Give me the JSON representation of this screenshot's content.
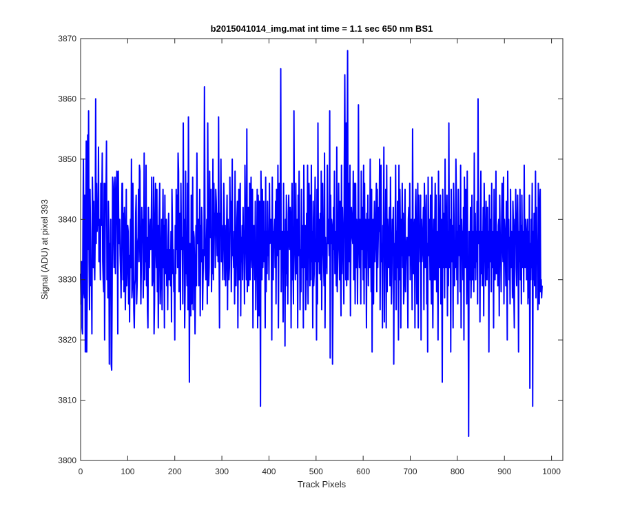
{
  "chart_data": {
    "type": "line",
    "title": "b2015041014_img.mat int time = 1.1 sec  650 nm BS1",
    "xlabel": "Track Pixels",
    "ylabel": "Signal (ADU) at pixel 393",
    "xlim": [
      0,
      1024
    ],
    "ylim": [
      3800,
      3870
    ],
    "xticks": [
      "0",
      "100",
      "200",
      "300",
      "400",
      "500",
      "600",
      "700",
      "800",
      "900",
      "1000"
    ],
    "yticks": [
      "3800",
      "3810",
      "3820",
      "3830",
      "3840",
      "3850",
      "3860",
      "3870"
    ],
    "grid": false,
    "line_color": "#0000ff",
    "x_step": 1,
    "series": [
      {
        "values": [
          3831,
          3826,
          3833,
          3822,
          3821,
          3838,
          3850,
          3828,
          3827,
          3844,
          3818,
          3840,
          3853,
          3818,
          3828,
          3854,
          3835,
          3858,
          3833,
          3825,
          3845,
          3838,
          3829,
          3832,
          3821,
          3847,
          3842,
          3832,
          3843,
          3833,
          3830,
          3838,
          3860,
          3836,
          3846,
          3838,
          3840,
          3839,
          3852,
          3833,
          3840,
          3836,
          3830,
          3846,
          3839,
          3842,
          3851,
          3833,
          3830,
          3828,
          3846,
          3820,
          3836,
          3846,
          3844,
          3853,
          3830,
          3837,
          3827,
          3843,
          3838,
          3816,
          3836,
          3830,
          3840,
          3816,
          3815,
          3828,
          3847,
          3845,
          3838,
          3832,
          3846,
          3847,
          3831,
          3839,
          3845,
          3848,
          3839,
          3821,
          3848,
          3838,
          3836,
          3840,
          3834,
          3831,
          3827,
          3838,
          3846,
          3846,
          3830,
          3841,
          3828,
          3842,
          3839,
          3825,
          3832,
          3845,
          3829,
          3832,
          3839,
          3838,
          3826,
          3834,
          3823,
          3834,
          3840,
          3832,
          3850,
          3827,
          3829,
          3846,
          3838,
          3825,
          3822,
          3829,
          3830,
          3841,
          3844,
          3826,
          3829,
          3836,
          3837,
          3845,
          3833,
          3849,
          3848,
          3835,
          3826,
          3833,
          3842,
          3837,
          3840,
          3827,
          3833,
          3851,
          3830,
          3836,
          3833,
          3849,
          3829,
          3837,
          3825,
          3822,
          3842,
          3836,
          3832,
          3838,
          3840,
          3835,
          3838,
          3847,
          3829,
          3830,
          3832,
          3847,
          3821,
          3826,
          3840,
          3846,
          3836,
          3832,
          3845,
          3828,
          3839,
          3822,
          3834,
          3841,
          3846,
          3826,
          3829,
          3835,
          3840,
          3825,
          3836,
          3845,
          3832,
          3839,
          3822,
          3844,
          3831,
          3838,
          3840,
          3829,
          3835,
          3825,
          3837,
          3841,
          3830,
          3833,
          3835,
          3829,
          3838,
          3823,
          3845,
          3839,
          3831,
          3835,
          3828,
          3830,
          3820,
          3839,
          3831,
          3845,
          3835,
          3844,
          3832,
          3851,
          3848,
          3828,
          3836,
          3841,
          3825,
          3846,
          3836,
          3835,
          3837,
          3826,
          3856,
          3835,
          3840,
          3822,
          3829,
          3848,
          3831,
          3834,
          3829,
          3846,
          3825,
          3857,
          3840,
          3813,
          3836,
          3830,
          3824,
          3844,
          3826,
          3829,
          3847,
          3825,
          3838,
          3837,
          3832,
          3821,
          3829,
          3839,
          3829,
          3851,
          3836,
          3839,
          3840,
          3829,
          3831,
          3845,
          3824,
          3839,
          3833,
          3842,
          3838,
          3825,
          3830,
          3835,
          3834,
          3862,
          3842,
          3832,
          3830,
          3834,
          3840,
          3826,
          3856,
          3838,
          3829,
          3832,
          3848,
          3838,
          3837,
          3845,
          3828,
          3836,
          3831,
          3850,
          3830,
          3846,
          3838,
          3841,
          3832,
          3845,
          3843,
          3839,
          3834,
          3841,
          3833,
          3857,
          3835,
          3822,
          3841,
          3838,
          3850,
          3833,
          3839,
          3835,
          3830,
          3838,
          3846,
          3841,
          3830,
          3839,
          3829,
          3833,
          3838,
          3844,
          3825,
          3840,
          3835,
          3830,
          3832,
          3847,
          3838,
          3843,
          3828,
          3835,
          3850,
          3834,
          3836,
          3832,
          3838,
          3826,
          3848,
          3836,
          3829,
          3835,
          3840,
          3843,
          3822,
          3838,
          3845,
          3830,
          3841,
          3846,
          3824,
          3837,
          3833,
          3839,
          3830,
          3842,
          3835,
          3838,
          3826,
          3849,
          3840,
          3836,
          3830,
          3855,
          3828,
          3840,
          3842,
          3829,
          3833,
          3846,
          3830,
          3838,
          3847,
          3834,
          3832,
          3845,
          3822,
          3838,
          3839,
          3836,
          3830,
          3843,
          3825,
          3833,
          3833,
          3845,
          3822,
          3844,
          3840,
          3824,
          3843,
          3836,
          3809,
          3848,
          3839,
          3830,
          3845,
          3832,
          3836,
          3843,
          3833,
          3838,
          3822,
          3847,
          3828,
          3838,
          3831,
          3843,
          3834,
          3838,
          3830,
          3846,
          3836,
          3840,
          3840,
          3836,
          3820,
          3847,
          3833,
          3830,
          3838,
          3838,
          3840,
          3832,
          3843,
          3826,
          3845,
          3838,
          3834,
          3849,
          3822,
          3836,
          3846,
          3835,
          3841,
          3865,
          3828,
          3838,
          3838,
          3836,
          3823,
          3846,
          3833,
          3838,
          3819,
          3840,
          3831,
          3844,
          3829,
          3838,
          3826,
          3841,
          3844,
          3836,
          3835,
          3842,
          3840,
          3822,
          3839,
          3846,
          3830,
          3833,
          3826,
          3858,
          3839,
          3835,
          3830,
          3846,
          3831,
          3837,
          3840,
          3822,
          3844,
          3834,
          3848,
          3839,
          3825,
          3835,
          3828,
          3845,
          3832,
          3839,
          3838,
          3822,
          3849,
          3837,
          3832,
          3839,
          3825,
          3829,
          3841,
          3830,
          3849,
          3826,
          3838,
          3846,
          3840,
          3829,
          3844,
          3830,
          3849,
          3833,
          3838,
          3822,
          3843,
          3829,
          3831,
          3839,
          3847,
          3833,
          3836,
          3820,
          3845,
          3826,
          3856,
          3833,
          3840,
          3831,
          3835,
          3841,
          3830,
          3848,
          3825,
          3838,
          3846,
          3836,
          3833,
          3829,
          3851,
          3822,
          3837,
          3832,
          3836,
          3831,
          3849,
          3836,
          3840,
          3838,
          3834,
          3858,
          3817,
          3844,
          3836,
          3840,
          3839,
          3816,
          3827,
          3842,
          3835,
          3848,
          3831,
          3838,
          3836,
          3829,
          3852,
          3828,
          3834,
          3838,
          3846,
          3836,
          3830,
          3843,
          3832,
          3824,
          3849,
          3831,
          3842,
          3838,
          3834,
          3826,
          3849,
          3864,
          3842,
          3830,
          3856,
          3829,
          3850,
          3868,
          3830,
          3837,
          3846,
          3833,
          3849,
          3824,
          3836,
          3842,
          3840,
          3837,
          3836,
          3848,
          3830,
          3846,
          3840,
          3826,
          3846,
          3832,
          3840,
          3838,
          3826,
          3838,
          3859,
          3838,
          3832,
          3840,
          3836,
          3826,
          3848,
          3835,
          3838,
          3842,
          3830,
          3849,
          3826,
          3846,
          3832,
          3840,
          3838,
          3822,
          3841,
          3835,
          3844,
          3829,
          3836,
          3840,
          3832,
          3850,
          3838,
          3828,
          3845,
          3818,
          3836,
          3840,
          3826,
          3838,
          3843,
          3833,
          3836,
          3840,
          3846,
          3828,
          3845,
          3832,
          3837,
          3842,
          3838,
          3850,
          3825,
          3838,
          3849,
          3833,
          3836,
          3822,
          3839,
          3836,
          3852,
          3823,
          3839,
          3836,
          3845,
          3822,
          3849,
          3828,
          3840,
          3835,
          3832,
          3838,
          3842,
          3829,
          3847,
          3836,
          3826,
          3831,
          3840,
          3834,
          3842,
          3816,
          3836,
          3830,
          3839,
          3849,
          3825,
          3838,
          3832,
          3843,
          3836,
          3820,
          3849,
          3830,
          3845,
          3838,
          3822,
          3840,
          3834,
          3846,
          3832,
          3841,
          3826,
          3829,
          3839,
          3845,
          3828,
          3835,
          3836,
          3837,
          3832,
          3822,
          3840,
          3842,
          3834,
          3846,
          3830,
          3835,
          3840,
          3838,
          3825,
          3855,
          3836,
          3831,
          3838,
          3840,
          3822,
          3842,
          3845,
          3835,
          3826,
          3836,
          3846,
          3822,
          3844,
          3836,
          3838,
          3833,
          3844,
          3820,
          3840,
          3833,
          3835,
          3838,
          3842,
          3825,
          3846,
          3839,
          3832,
          3838,
          3844,
          3826,
          3836,
          3818,
          3847,
          3838,
          3834,
          3840,
          3830,
          3844,
          3832,
          3826,
          3847,
          3833,
          3822,
          3836,
          3840,
          3830,
          3838,
          3846,
          3830,
          3844,
          3828,
          3838,
          3836,
          3820,
          3848,
          3839,
          3832,
          3838,
          3844,
          3826,
          3840,
          3830,
          3813,
          3845,
          3832,
          3841,
          3838,
          3827,
          3850,
          3836,
          3832,
          3840,
          3844,
          3824,
          3838,
          3829,
          3856,
          3832,
          3840,
          3838,
          3818,
          3845,
          3836,
          3833,
          3839,
          3822,
          3846,
          3840,
          3829,
          3836,
          3832,
          3850,
          3843,
          3830,
          3838,
          3826,
          3845,
          3838,
          3834,
          3839,
          3828,
          3849,
          3822,
          3840,
          3835,
          3838,
          3830,
          3842,
          3820,
          3847,
          3836,
          3832,
          3845,
          3838,
          3826,
          3848,
          3833,
          3829,
          3804,
          3838,
          3836,
          3830,
          3842,
          3827,
          3833,
          3844,
          3830,
          3838,
          3836,
          3828,
          3851,
          3832,
          3841,
          3830,
          3838,
          3833,
          3843,
          3826,
          3860,
          3836,
          3838,
          3838,
          3823,
          3840,
          3848,
          3831,
          3838,
          3829,
          3834,
          3842,
          3824,
          3846,
          3839,
          3835,
          3829,
          3843,
          3836,
          3830,
          3842,
          3832,
          3838,
          3818,
          3844,
          3836,
          3833,
          3840,
          3828,
          3846,
          3832,
          3838,
          3837,
          3822,
          3845,
          3833,
          3830,
          3835,
          3848,
          3831,
          3838,
          3836,
          3829,
          3839,
          3840,
          3824,
          3844,
          3837,
          3835,
          3828,
          3839,
          3846,
          3836,
          3833,
          3847,
          3826,
          3840,
          3838,
          3835,
          3829,
          3843,
          3834,
          3820,
          3848,
          3836,
          3840,
          3830,
          3837,
          3826,
          3845,
          3832,
          3838,
          3836,
          3827,
          3843,
          3839,
          3828,
          3822,
          3840,
          3836,
          3845,
          3832,
          3829,
          3840,
          3844,
          3836,
          3818,
          3838,
          3833,
          3845,
          3830,
          3839,
          3826,
          3844,
          3835,
          3832,
          3838,
          3828,
          3849,
          3836,
          3832,
          3840,
          3838,
          3830,
          3834,
          3840,
          3826,
          3838,
          3827,
          3844,
          3812,
          3836,
          3830,
          3840,
          3832,
          3846,
          3809,
          3838,
          3830,
          3841,
          3829,
          3835,
          3848,
          3827,
          3842,
          3833,
          3836,
          3825,
          3846,
          3838,
          3826,
          3843,
          3845,
          3828,
          3830,
          3827,
          3829
        ]
      }
    ]
  }
}
